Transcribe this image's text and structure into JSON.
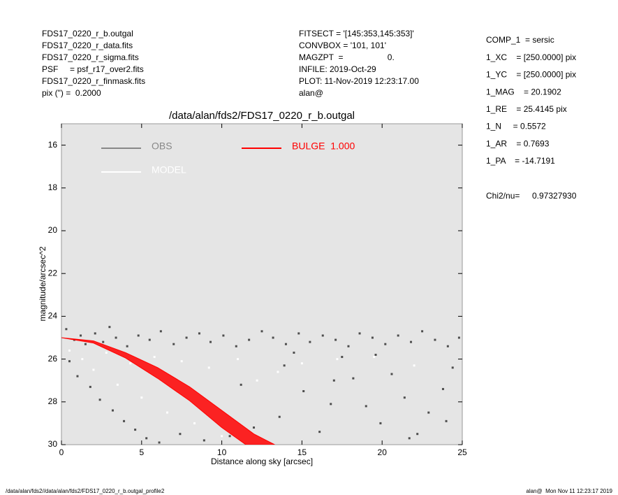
{
  "header": {
    "left": [
      "FDS17_0220_r_b.outgal",
      "FDS17_0220_r_data.fits",
      "FDS17_0220_r_sigma.fits",
      "PSF     = psf_r17_over2.fits",
      "FDS17_0220_r_finmask.fits",
      "pix (\") =  0.2000"
    ],
    "middle": [
      "FITSECT = '[145:353,145:353]'",
      "CONVBOX = '101, 101'",
      "MAGZPT  =                   0.",
      "INFILE: 2019-Oct-29",
      "PLOT: 11-Nov-2019 12:23:17.00",
      "alan@"
    ],
    "right": [
      "COMP_1  = sersic",
      "1_XC    = [250.0000] pix",
      "1_YC    = [250.0000] pix",
      "1_MAG    = 20.1902",
      "1_RE    = 25.4145 pix",
      "1_N     = 0.5572",
      "1_AR    = 0.7693",
      "1_PA    = -14.7191"
    ],
    "chi": [
      "Chi2/nu=",
      "0.97327930"
    ]
  },
  "footer": {
    "left": "/data/alan/fds2//data/alan/fds2/FDS17_0220_r_b.outgal_profile2",
    "right": "alan@  Mon Nov 11 12:23:17 2019"
  },
  "chart_data": {
    "type": "scatter",
    "title": "/data/alan/fds2/FDS17_0220_r_b.outgal",
    "xlabel": "Distance along sky [arcsec]",
    "ylabel": "magnitude/arcsec^2",
    "xlim": [
      0,
      25
    ],
    "ylim": [
      30,
      15
    ],
    "inverted_y": true,
    "xticks": [
      0,
      5,
      10,
      15,
      20,
      25
    ],
    "yticks": [
      16,
      18,
      20,
      22,
      24,
      26,
      28,
      30
    ],
    "series": [
      {
        "name": "OBS",
        "color": "#4d4d4d",
        "legend_color": "#888888",
        "x": [
          0.3,
          0.8,
          1.2,
          1.5,
          2.1,
          2.6,
          3.0,
          3.4,
          4.1,
          4.8,
          5.5,
          6.2,
          7.0,
          7.8,
          8.6,
          9.3,
          10.1,
          10.9,
          11.7,
          12.5,
          13.2,
          14.0,
          14.8,
          15.5,
          16.3,
          17.1,
          17.9,
          18.6,
          19.4,
          20.2,
          21.0,
          21.8,
          22.5,
          23.3,
          24.1,
          24.8,
          0.5,
          1.0,
          1.8,
          2.4,
          3.2,
          3.9,
          4.6,
          5.3,
          6.1,
          7.4,
          8.9,
          10.5,
          12.0,
          13.6,
          15.1,
          16.8,
          18.2,
          19.9,
          21.4,
          22.9,
          24.4,
          11.2,
          13.9,
          16.1,
          17.5,
          19.0,
          20.6,
          22.2,
          23.8,
          14.5,
          17.0,
          19.6,
          21.7,
          24.0
        ],
        "values": [
          24.6,
          25.1,
          24.9,
          25.3,
          24.8,
          25.2,
          24.5,
          25.0,
          25.4,
          24.9,
          25.1,
          24.7,
          25.3,
          25.0,
          24.8,
          25.2,
          24.9,
          25.4,
          25.1,
          24.7,
          25.0,
          25.3,
          24.8,
          25.2,
          24.9,
          25.1,
          25.4,
          24.8,
          25.0,
          25.3,
          24.9,
          25.2,
          24.7,
          25.1,
          25.4,
          25.0,
          26.1,
          26.8,
          27.3,
          27.9,
          28.4,
          28.9,
          29.3,
          29.7,
          29.9,
          29.5,
          29.8,
          29.6,
          29.2,
          28.7,
          27.5,
          28.1,
          26.9,
          29.0,
          27.8,
          28.5,
          26.4,
          27.2,
          26.3,
          29.4,
          25.9,
          28.2,
          26.7,
          29.5,
          27.4,
          25.7,
          27.0,
          25.8,
          29.7,
          28.9
        ]
      },
      {
        "name": "MODEL",
        "color": "#ffffff",
        "x": [
          0.5,
          1.3,
          2.0,
          2.8,
          3.5,
          4.3,
          5.0,
          5.8,
          6.6,
          7.5,
          8.3,
          9.2,
          10.0,
          11.0,
          12.2,
          13.5,
          15.0,
          17.2,
          19.5,
          22.0
        ],
        "values": [
          25.6,
          26.0,
          26.5,
          25.7,
          27.2,
          26.2,
          27.8,
          25.9,
          28.5,
          26.1,
          29.0,
          26.4,
          29.6,
          26.0,
          27.0,
          26.6,
          26.2,
          26.0,
          25.9,
          26.3
        ]
      },
      {
        "name": "BULGE  1.000",
        "color": "#ff0000",
        "band": true,
        "x": [
          0,
          2,
          4,
          6,
          8,
          10,
          12,
          13.3
        ],
        "values": [
          25.0,
          25.15,
          25.7,
          26.4,
          27.3,
          28.4,
          29.5,
          30.0
        ],
        "x2": [
          0,
          2,
          4,
          6,
          8,
          10,
          11.5
        ],
        "values2": [
          25.0,
          25.25,
          25.95,
          26.9,
          27.95,
          29.2,
          30.0
        ]
      }
    ]
  }
}
